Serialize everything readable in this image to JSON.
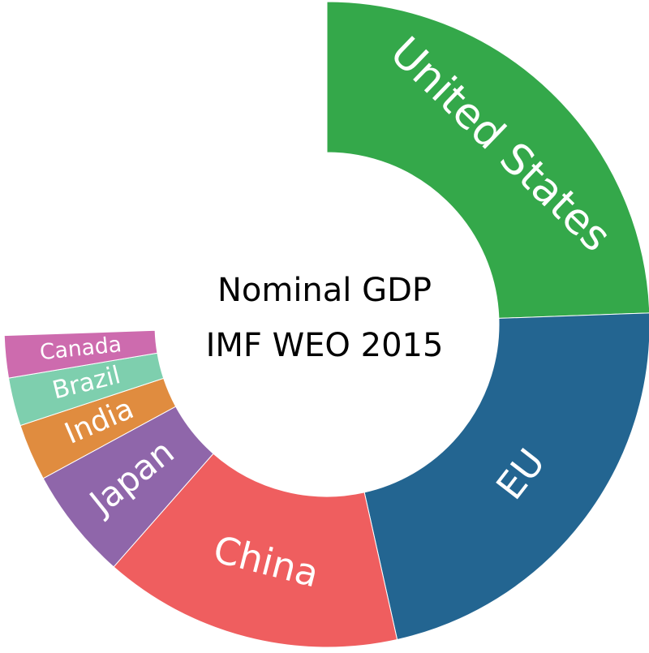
{
  "chart_data": {
    "type": "donut",
    "title": "Nominal GDP",
    "subtitle": "IMF WEO 2015",
    "categories": [
      "United States",
      "EU",
      "China",
      "Japan",
      "India",
      "Brazil",
      "Canada"
    ],
    "values": [
      17.95,
      16.22,
      11.0,
      4.12,
      2.09,
      1.77,
      1.55
    ],
    "colors": [
      "#34a84a",
      "#236591",
      "#ef5e5f",
      "#8f66aa",
      "#e08c3f",
      "#7ecfae",
      "#cd6bae"
    ]
  }
}
